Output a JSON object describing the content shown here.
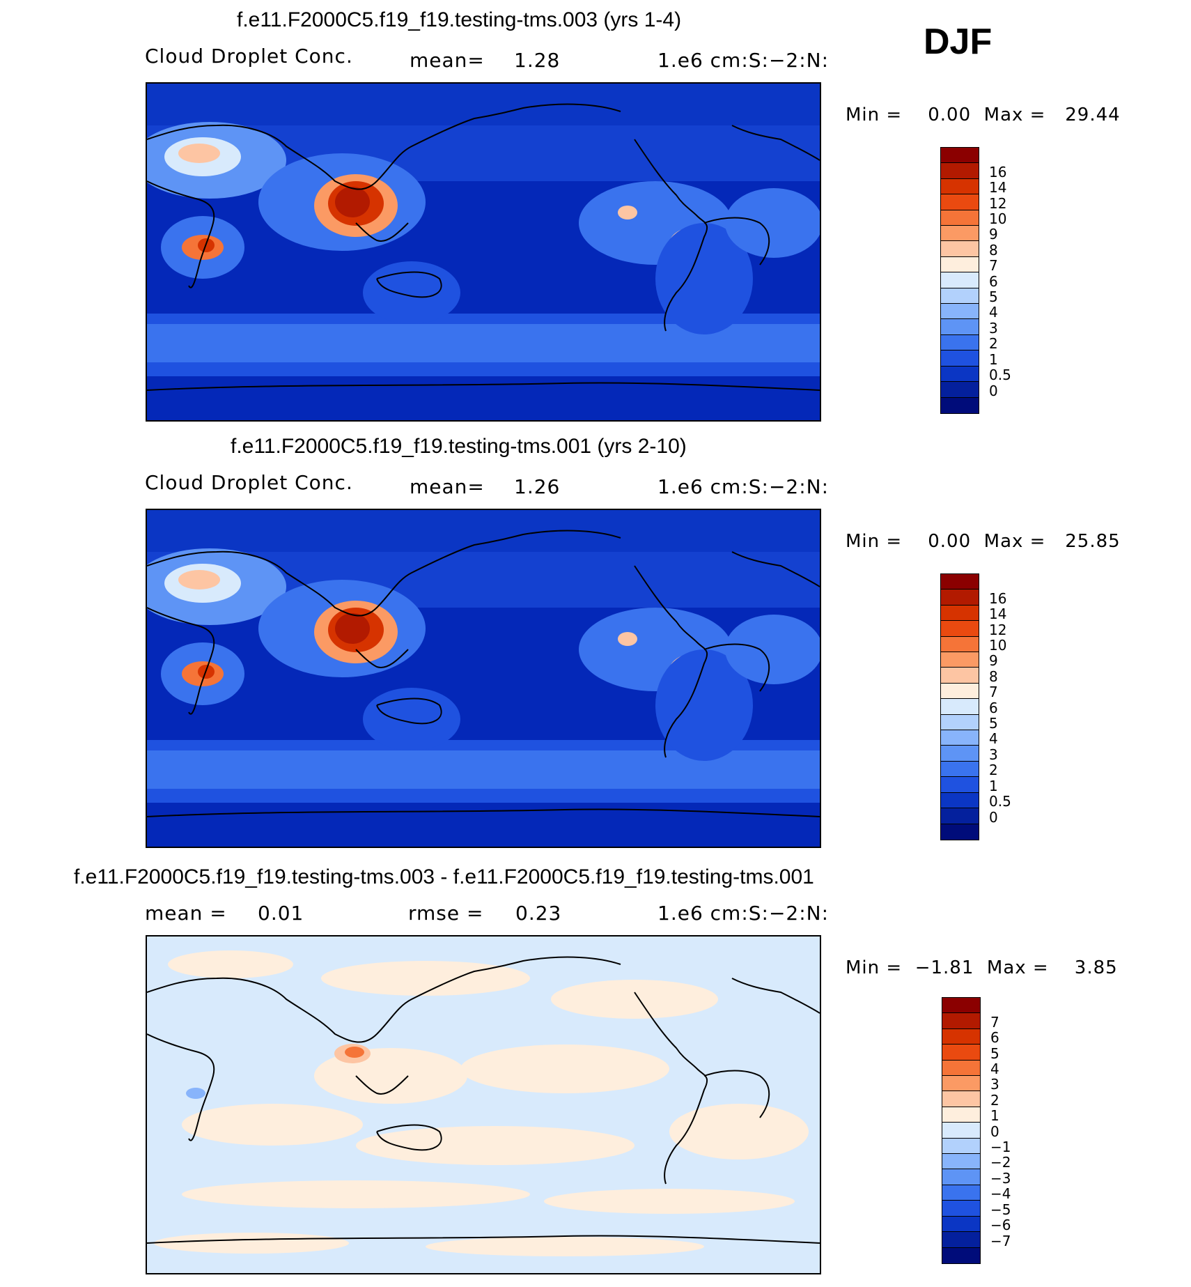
{
  "season": "DJF",
  "panels": [
    {
      "title": "f.e11.F2000C5.f19_f19.testing-tms.003 (yrs 1-4)",
      "left_label": "Cloud Droplet Conc.",
      "stat1": "mean=",
      "stat1_value": "1.28",
      "stat2": "",
      "stat2_value": "",
      "units": "1.e6 cm:S:−2:N:",
      "minmax": "Min =    0.00  Max =   29.44",
      "legend_colors": [
        "#8b0000",
        "#b21a00",
        "#d63300",
        "#ea4a10",
        "#f57438",
        "#fb9a64",
        "#fdc5a3",
        "#feeedd",
        "#d8eafc",
        "#b2d1fc",
        "#88b4fb",
        "#5e94f5",
        "#3a73ee",
        "#1f52e0",
        "#0b36c4",
        "#04209d",
        "#000c7a"
      ],
      "legend_labels": [
        "16",
        "14",
        "12",
        "10",
        "9",
        "8",
        "7",
        "6",
        "5",
        "4",
        "3",
        "2",
        "1",
        "0.5",
        "0"
      ],
      "map_bg": "#0428b8"
    },
    {
      "title": "f.e11.F2000C5.f19_f19.testing-tms.001 (yrs 2-10)",
      "left_label": "Cloud Droplet Conc.",
      "stat1": "mean=",
      "stat1_value": "1.26",
      "stat2": "",
      "stat2_value": "",
      "units": "1.e6 cm:S:−2:N:",
      "minmax": "Min =    0.00  Max =   25.85",
      "legend_colors": [
        "#8b0000",
        "#b21a00",
        "#d63300",
        "#ea4a10",
        "#f57438",
        "#fb9a64",
        "#fdc5a3",
        "#feeedd",
        "#d8eafc",
        "#b2d1fc",
        "#88b4fb",
        "#5e94f5",
        "#3a73ee",
        "#1f52e0",
        "#0b36c4",
        "#04209d",
        "#000c7a"
      ],
      "legend_labels": [
        "16",
        "14",
        "12",
        "10",
        "9",
        "8",
        "7",
        "6",
        "5",
        "4",
        "3",
        "2",
        "1",
        "0.5",
        "0"
      ],
      "map_bg": "#0428b8"
    },
    {
      "title": "f.e11.F2000C5.f19_f19.testing-tms.003 - f.e11.F2000C5.f19_f19.testing-tms.001",
      "left_label": "mean =",
      "stat1": "",
      "stat1_value": "0.01",
      "stat2": "rmse =",
      "stat2_value": "0.23",
      "units": "1.e6 cm:S:−2:N:",
      "minmax": "Min =  −1.81  Max =    3.85",
      "legend_colors": [
        "#8b0000",
        "#b21a00",
        "#d63300",
        "#ea4a10",
        "#f57438",
        "#fb9a64",
        "#fdc5a3",
        "#feeedd",
        "#d8eafc",
        "#b2d1fc",
        "#88b4fb",
        "#5e94f5",
        "#3a73ee",
        "#1f52e0",
        "#0b36c4",
        "#04209d",
        "#000c7a"
      ],
      "legend_labels": [
        "7",
        "6",
        "5",
        "4",
        "3",
        "2",
        "1",
        "0",
        "−1",
        "−2",
        "−3",
        "−4",
        "−5",
        "−6",
        "−7"
      ],
      "map_bg": "#d8eafc"
    }
  ]
}
